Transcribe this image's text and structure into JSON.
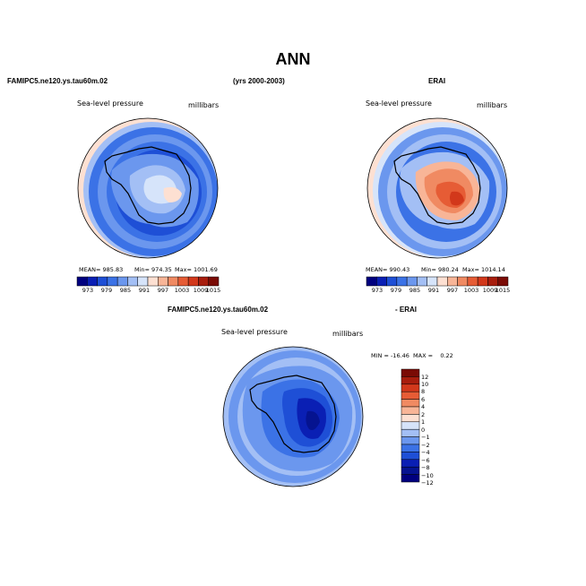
{
  "chart_data": {
    "type": "heatmap",
    "title": "ANN",
    "panels": [
      {
        "id": "model",
        "case_label": "FAMIPC5.ne120.ys.tau60m.02",
        "period_label": "(yrs 2000-2003)",
        "variable": "Sea-level pressure",
        "units": "millibars",
        "stats": {
          "mean": "MEAN= 985.83",
          "min": "Min= 974.35",
          "max": "Max= 1001.69"
        },
        "colorbar_ticks": [
          "973",
          "979",
          "985",
          "991",
          "997",
          "1003",
          "1009",
          "1015"
        ]
      },
      {
        "id": "obs",
        "case_label": "ERAI",
        "variable": "Sea-level pressure",
        "units": "millibars",
        "stats": {
          "mean": "MEAN= 990.43",
          "min": "Min= 980.24",
          "max": "Max= 1014.14"
        },
        "colorbar_ticks": [
          "973",
          "979",
          "985",
          "991",
          "997",
          "1003",
          "1009",
          "1015"
        ]
      },
      {
        "id": "diff",
        "case_label": "FAMIPC5.ne120.ys.tau60m.02",
        "case_label_suffix": "- ERAI",
        "variable": "Sea-level pressure",
        "units": "millibars",
        "range_text": "MIN = -16.46  MAX =    0.22",
        "colorbar_ticks": [
          "12",
          "10",
          "8",
          "6",
          "4",
          "2",
          "1",
          "0",
          "−1",
          "−2",
          "−4",
          "−6",
          "−8",
          "−10",
          "−12"
        ]
      }
    ],
    "colorbar_colors": [
      "#00007f",
      "#0a1fb4",
      "#1e4fd6",
      "#3b72e6",
      "#6b97ee",
      "#a3bff5",
      "#d6e4fa",
      "#fde0d2",
      "#f8b597",
      "#f08a62",
      "#e65c35",
      "#d2381b",
      "#a81d0d",
      "#7a0b05"
    ],
    "diff_colors": [
      "#7a0b05",
      "#a81d0d",
      "#d2381b",
      "#e65c35",
      "#f08a62",
      "#f8b597",
      "#fde0d2",
      "#d6e4fa",
      "#a3bff5",
      "#6b97ee",
      "#3b72e6",
      "#1e4fd6",
      "#0a1fb4",
      "#051390",
      "#00007f"
    ]
  }
}
